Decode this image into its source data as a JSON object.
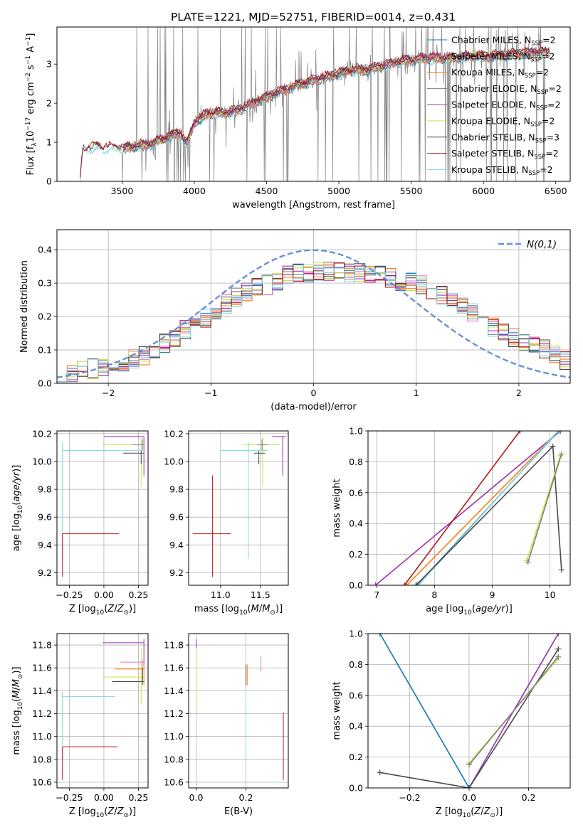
{
  "title": "PLATE=1221, MJD=52751, FIBERID=0014, z=0.431",
  "colors": {
    "Chabrier MILES": "#1f77b4",
    "Salpeter MILES": "#e377c2",
    "Kroupa MILES": "#ff7f0e",
    "Chabrier ELODIE": "#7f7f7f",
    "Salpeter ELODIE": "#9b30b0",
    "Kroupa ELODIE": "#c8e04a",
    "Chabrier STELIB": "#4a4a4a",
    "Salpeter STELIB": "#b01818",
    "Kroupa STELIB": "#7fd8e0",
    "data": "#808080",
    "gaussian": "#6a8ed8"
  },
  "chart_data": [
    {
      "id": "spectrum",
      "type": "line",
      "xlabel": "wavelength [Angstrom, rest frame]",
      "ylabel": "Flux [f_λ 10^-17 erg cm^-2 s^-1 A^-1]",
      "xlim": [
        3050,
        6600
      ],
      "ylim": [
        0,
        3.95
      ],
      "xticks": [
        3500,
        4000,
        4500,
        5000,
        5500,
        6000,
        6500
      ],
      "yticks": [
        0,
        1,
        2,
        3
      ],
      "legend_position": "top-right",
      "legend": [
        {
          "label": "Chabrier MILES, N_SSP=2",
          "color": "#1f77b4"
        },
        {
          "label": "Salpeter MILES, N_SSP=2",
          "color": "#e377c2"
        },
        {
          "label": "Kroupa MILES, N_SSP=2",
          "color": "#ff7f0e"
        },
        {
          "label": "Chabrier ELODIE, N_SSP=2",
          "color": "#7f7f7f"
        },
        {
          "label": "Salpeter ELODIE, N_SSP=2",
          "color": "#9b30b0"
        },
        {
          "label": "Kroupa ELODIE, N_SSP=2",
          "color": "#c8e04a"
        },
        {
          "label": "Chabrier STELIB, N_SSP=3",
          "color": "#4a4a4a"
        },
        {
          "label": "Salpeter STELIB, N_SSP=2",
          "color": "#b01818"
        },
        {
          "label": "Kroupa STELIB, N_SSP=2",
          "color": "#7fd8e0"
        }
      ],
      "model_continuum": [
        [
          3210,
          0.05
        ],
        [
          3230,
          0.8
        ],
        [
          3300,
          0.88
        ],
        [
          3400,
          0.86
        ],
        [
          3500,
          0.85
        ],
        [
          3600,
          0.9
        ],
        [
          3700,
          0.95
        ],
        [
          3800,
          1.1
        ],
        [
          3900,
          1.25
        ],
        [
          3950,
          0.95
        ],
        [
          4000,
          1.5
        ],
        [
          4100,
          1.75
        ],
        [
          4200,
          1.75
        ],
        [
          4300,
          1.8
        ],
        [
          4400,
          2.0
        ],
        [
          4500,
          2.15
        ],
        [
          4600,
          2.3
        ],
        [
          4700,
          2.45
        ],
        [
          4800,
          2.55
        ],
        [
          4900,
          2.65
        ],
        [
          5000,
          2.75
        ],
        [
          5100,
          2.85
        ],
        [
          5200,
          2.85
        ],
        [
          5300,
          2.95
        ],
        [
          5400,
          3.05
        ],
        [
          5500,
          3.1
        ],
        [
          5600,
          3.15
        ],
        [
          5700,
          3.15
        ],
        [
          5800,
          3.15
        ],
        [
          5900,
          3.2
        ],
        [
          6000,
          3.2
        ],
        [
          6100,
          3.2
        ],
        [
          6200,
          3.25
        ],
        [
          6300,
          3.3
        ],
        [
          6400,
          3.3
        ],
        [
          6460,
          3.3
        ]
      ]
    },
    {
      "id": "residuals",
      "type": "line",
      "xlabel": "(data-model)/error",
      "ylabel": "Normed distribution",
      "xlim": [
        -2.5,
        2.5
      ],
      "ylim": [
        0,
        0.46
      ],
      "xticks": [
        -2,
        -1,
        0,
        1,
        2
      ],
      "yticks": [
        0.0,
        0.1,
        0.2,
        0.3,
        0.4
      ],
      "legend_label": "N(0,1)",
      "gaussian": {
        "mean": 0,
        "sigma": 1
      },
      "hist_bin_width": 0.1,
      "hist_envelope": [
        [
          -2.5,
          0.02
        ],
        [
          -2.2,
          0.04
        ],
        [
          -2.0,
          0.055
        ],
        [
          -1.8,
          0.07
        ],
        [
          -1.6,
          0.09
        ],
        [
          -1.4,
          0.13
        ],
        [
          -1.2,
          0.17
        ],
        [
          -1.0,
          0.2
        ],
        [
          -0.8,
          0.25
        ],
        [
          -0.6,
          0.28
        ],
        [
          -0.4,
          0.3
        ],
        [
          -0.2,
          0.33
        ],
        [
          0.0,
          0.33
        ],
        [
          0.2,
          0.34
        ],
        [
          0.4,
          0.33
        ],
        [
          0.6,
          0.33
        ],
        [
          0.8,
          0.31
        ],
        [
          1.0,
          0.3
        ],
        [
          1.2,
          0.27
        ],
        [
          1.4,
          0.24
        ],
        [
          1.6,
          0.2
        ],
        [
          1.8,
          0.16
        ],
        [
          2.0,
          0.13
        ],
        [
          2.2,
          0.11
        ],
        [
          2.5,
          0.06
        ]
      ]
    },
    {
      "id": "age_vs_Z",
      "type": "scatter",
      "xlabel": "Z [log10(Z/Z⊙)]",
      "ylabel": "age [log10(age/yr)]",
      "xlim": [
        -0.34,
        0.32
      ],
      "ylim": [
        9.11,
        10.22
      ],
      "xticks": [
        -0.25,
        0.0,
        0.25
      ],
      "xticklabels": [
        "−0.25",
        "0.00",
        "0.25"
      ],
      "yticks": [
        9.2,
        9.4,
        9.6,
        9.8,
        10.0,
        10.2
      ],
      "errorbars": [
        {
          "series": "Salpeter ELODIE",
          "x": 0.29,
          "y": 10.18,
          "xlo": 0.0,
          "xhi": 0.29,
          "ylo": 9.9,
          "yhi": 10.18
        },
        {
          "series": "Kroupa ELODIE",
          "x": 0.27,
          "y": 10.12,
          "xlo": -0.01,
          "xhi": 0.29,
          "ylo": 9.82,
          "yhi": 10.18
        },
        {
          "series": "Chabrier ELODIE",
          "x": 0.28,
          "y": 10.12,
          "xlo": 0.2,
          "xhi": 0.29,
          "ylo": 10.08,
          "yhi": 10.16
        },
        {
          "series": "Chabrier STELIB",
          "x": 0.27,
          "y": 10.06,
          "xlo": 0.14,
          "xhi": 0.29,
          "ylo": 9.98,
          "yhi": 10.08
        },
        {
          "series": "Kroupa STELIB",
          "x": -0.3,
          "y": 10.08,
          "xlo": -0.3,
          "xhi": 0.28,
          "ylo": 9.3,
          "yhi": 10.14
        },
        {
          "series": "Salpeter STELIB",
          "x": -0.3,
          "y": 9.48,
          "xlo": -0.3,
          "xhi": 0.11,
          "ylo": 9.17,
          "yhi": 9.48
        }
      ]
    },
    {
      "id": "age_vs_mass",
      "type": "scatter",
      "xlabel": "mass [log10(M/M⊙)]",
      "xlim": [
        10.6,
        11.85
      ],
      "ylim": [
        9.11,
        10.22
      ],
      "xticks": [
        11.0,
        11.5
      ],
      "xticklabels": [
        "11.0",
        "11.5"
      ],
      "yticks": [
        9.2,
        9.4,
        9.6,
        9.8,
        10.0,
        10.2
      ],
      "errorbars": [
        {
          "series": "Salpeter ELODIE",
          "x": 11.78,
          "y": 10.18,
          "xlo": 11.65,
          "xhi": 11.82,
          "ylo": 9.9,
          "yhi": 10.18
        },
        {
          "series": "Kroupa ELODIE",
          "x": 11.53,
          "y": 10.12,
          "xlo": 11.28,
          "xhi": 11.75,
          "ylo": 9.82,
          "yhi": 10.18
        },
        {
          "series": "Chabrier ELODIE",
          "x": 11.52,
          "y": 10.12,
          "xlo": 11.46,
          "xhi": 11.6,
          "ylo": 10.08,
          "yhi": 10.16
        },
        {
          "series": "Chabrier STELIB",
          "x": 11.48,
          "y": 10.06,
          "xlo": 11.42,
          "xhi": 11.56,
          "ylo": 9.98,
          "yhi": 10.08
        },
        {
          "series": "Kroupa STELIB",
          "x": 11.35,
          "y": 10.08,
          "xlo": 11.0,
          "xhi": 11.6,
          "ylo": 9.3,
          "yhi": 10.14
        },
        {
          "series": "Salpeter STELIB",
          "x": 10.9,
          "y": 9.48,
          "xlo": 10.65,
          "xhi": 11.13,
          "ylo": 9.17,
          "yhi": 9.9
        }
      ]
    },
    {
      "id": "massweight_vs_age",
      "type": "line",
      "xlabel": "age [log10(age/yr)]",
      "ylabel": "mass weight",
      "xlim": [
        6.85,
        10.35
      ],
      "ylim": [
        0,
        1.0
      ],
      "xticks": [
        7,
        8,
        9,
        10
      ],
      "yticks": [
        0.0,
        0.2,
        0.4,
        0.6,
        0.8,
        1.0
      ],
      "series": [
        {
          "name": "Salpeter ELODIE",
          "points": [
            [
              6.98,
              0.0
            ],
            [
              10.18,
              1.0
            ]
          ]
        },
        {
          "name": "Salpeter STELIB",
          "points": [
            [
              7.48,
              0.0
            ],
            [
              9.48,
              1.0
            ]
          ]
        },
        {
          "name": "Kroupa MILES",
          "points": [
            [
              7.52,
              0.0
            ],
            [
              10.15,
              1.0
            ]
          ]
        },
        {
          "name": "Chabrier MILES",
          "points": [
            [
              7.7,
              0.0
            ],
            [
              10.15,
              1.0
            ]
          ]
        },
        {
          "name": "Kroupa STELIB",
          "points": [
            [
              7.72,
              0.0
            ],
            [
              10.14,
              1.0
            ]
          ]
        },
        {
          "name": "Chabrier STELIB",
          "points": [
            [
              7.68,
              0.0
            ],
            [
              10.05,
              0.9
            ],
            [
              10.2,
              0.1
            ]
          ]
        },
        {
          "name": "Kroupa ELODIE",
          "points": [
            [
              9.6,
              0.16
            ],
            [
              10.18,
              0.84
            ]
          ]
        },
        {
          "name": "Chabrier ELODIE",
          "points": [
            [
              9.62,
              0.15
            ],
            [
              10.2,
              0.85
            ]
          ]
        }
      ]
    },
    {
      "id": "mass_vs_Z",
      "type": "scatter",
      "xlabel": "Z [log10(Z/Z⊙)]",
      "ylabel": "mass [log10(M/M⊙)]",
      "xlim": [
        -0.34,
        0.32
      ],
      "ylim": [
        10.55,
        11.9
      ],
      "xticks": [
        -0.25,
        0.0,
        0.25
      ],
      "xticklabels": [
        "−0.25",
        "0.00",
        "0.25"
      ],
      "yticks": [
        10.6,
        10.8,
        11.0,
        11.2,
        11.4,
        11.6,
        11.8
      ],
      "errorbars": [
        {
          "series": "Salpeter ELODIE",
          "x": 0.29,
          "y": 11.82,
          "xlo": -0.01,
          "xhi": 0.29,
          "ylo": 11.62,
          "yhi": 11.85
        },
        {
          "series": "Kroupa ELODIE",
          "x": 0.27,
          "y": 11.52,
          "xlo": -0.01,
          "xhi": 0.29,
          "ylo": 11.28,
          "yhi": 11.77
        },
        {
          "series": "Salpeter MILES",
          "x": 0.28,
          "y": 11.65,
          "xlo": 0.12,
          "xhi": 0.29,
          "ylo": 11.5,
          "yhi": 11.67
        },
        {
          "series": "Kroupa MILES",
          "x": 0.29,
          "y": 11.59,
          "xlo": 0.08,
          "xhi": 0.29,
          "ylo": 11.45,
          "yhi": 11.63
        },
        {
          "series": "Chabrier STELIB",
          "x": 0.28,
          "y": 11.48,
          "xlo": 0.06,
          "xhi": 0.29,
          "ylo": 11.45,
          "yhi": 11.6
        },
        {
          "series": "Kroupa STELIB",
          "x": -0.3,
          "y": 11.35,
          "xlo": -0.3,
          "xhi": 0.08,
          "ylo": 10.8,
          "yhi": 11.39
        },
        {
          "series": "Salpeter STELIB",
          "x": -0.3,
          "y": 10.91,
          "xlo": -0.3,
          "xhi": 0.1,
          "ylo": 10.62,
          "yhi": 10.91
        }
      ]
    },
    {
      "id": "mass_vs_EBV",
      "type": "scatter",
      "xlabel": "E(B-V)",
      "xlim": [
        -0.03,
        0.37
      ],
      "ylim": [
        10.55,
        11.9
      ],
      "xticks": [
        0.0,
        0.2
      ],
      "xticklabels": [
        "0.0",
        "0.2"
      ],
      "yticks": [
        10.6,
        10.8,
        11.0,
        11.2,
        11.4,
        11.6,
        11.8
      ],
      "errorbars": [
        {
          "series": "Salpeter ELODIE",
          "x": 0.0,
          "y": 11.82,
          "xlo": 0.0,
          "xhi": 0.0,
          "ylo": 11.65,
          "yhi": 11.85
        },
        {
          "series": "Kroupa ELODIE",
          "x": 0.0,
          "y": 11.52,
          "xlo": 0.0,
          "xhi": 0.0,
          "ylo": 11.25,
          "yhi": 11.77
        },
        {
          "series": "Salpeter MILES",
          "x": 0.26,
          "y": 11.62,
          "xlo": 0.26,
          "xhi": 0.26,
          "ylo": 11.57,
          "yhi": 11.7
        },
        {
          "series": "Kroupa MILES",
          "x": 0.205,
          "y": 11.58,
          "xlo": 0.205,
          "xhi": 0.205,
          "ylo": 11.45,
          "yhi": 11.63
        },
        {
          "series": "Chabrier STELIB",
          "x": 0.2,
          "y": 11.55,
          "xlo": 0.2,
          "xhi": 0.2,
          "ylo": 11.45,
          "yhi": 11.63
        },
        {
          "series": "Kroupa STELIB",
          "x": 0.2,
          "y": 11.35,
          "xlo": 0.2,
          "xhi": 0.2,
          "ylo": 10.8,
          "yhi": 11.39
        },
        {
          "series": "Salpeter STELIB",
          "x": 0.35,
          "y": 10.91,
          "xlo": 0.35,
          "xhi": 0.35,
          "ylo": 10.62,
          "yhi": 11.21
        }
      ]
    },
    {
      "id": "massweight_vs_Z",
      "type": "line",
      "xlabel": "Z [log10(Z/Z⊙)]",
      "ylabel": "mass weight",
      "xlim": [
        -0.34,
        0.34
      ],
      "ylim": [
        0,
        1.0
      ],
      "xticks": [
        -0.2,
        0.0,
        0.2
      ],
      "xticklabels": [
        "−0.2",
        "0.0",
        "0.2"
      ],
      "yticks": [
        0.0,
        0.2,
        0.4,
        0.6,
        0.8,
        1.0
      ],
      "series": [
        {
          "name": "Kroupa STELIB",
          "points": [
            [
              -0.3,
              1.0
            ],
            [
              0.0,
              0.0
            ],
            [
              0.3,
              1.0
            ]
          ]
        },
        {
          "name": "Chabrier MILES",
          "points": [
            [
              -0.3,
              1.0
            ],
            [
              0.0,
              0.0
            ]
          ]
        },
        {
          "name": "Salpeter ELODIE",
          "points": [
            [
              0.0,
              0.0
            ],
            [
              0.3,
              1.0
            ]
          ]
        },
        {
          "name": "Chabrier STELIB",
          "points": [
            [
              -0.3,
              0.1
            ],
            [
              0.0,
              0.0
            ],
            [
              0.3,
              0.9
            ]
          ]
        },
        {
          "name": "Kroupa ELODIE",
          "points": [
            [
              0.0,
              0.16
            ],
            [
              0.3,
              0.84
            ]
          ]
        },
        {
          "name": "Chabrier ELODIE",
          "points": [
            [
              0.0,
              0.15
            ],
            [
              0.3,
              0.85
            ]
          ]
        }
      ]
    }
  ]
}
